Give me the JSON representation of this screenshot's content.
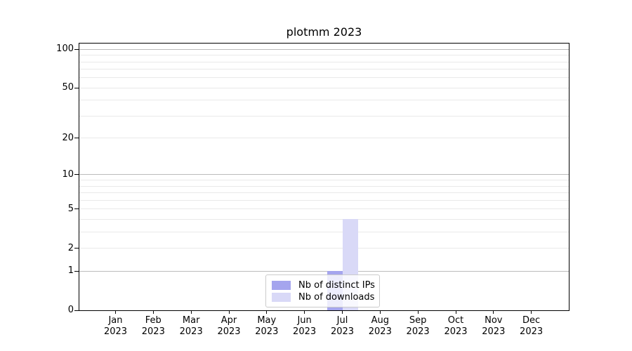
{
  "figure": {
    "title": "plotmm 2023"
  },
  "chart_data": {
    "type": "bar",
    "title": "plotmm 2023",
    "categories": [
      "Jan",
      "Feb",
      "Mar",
      "Apr",
      "May",
      "Jun",
      "Jul",
      "Aug",
      "Sep",
      "Oct",
      "Nov",
      "Dec"
    ],
    "category_year": "2023",
    "series": [
      {
        "name": "Nb of distinct IPs",
        "color": "#a5a5ee",
        "values": [
          0,
          0,
          0,
          0,
          0,
          0,
          1,
          0,
          0,
          0,
          0,
          0
        ]
      },
      {
        "name": "Nb of downloads",
        "color": "#d9d9f7",
        "values": [
          0,
          0,
          0,
          0,
          0,
          0,
          4,
          0,
          0,
          0,
          0,
          0
        ]
      }
    ],
    "xlabel": "",
    "ylabel": "",
    "y_axis": {
      "scale": "log10(1+v)",
      "labeled_ticks": [
        0,
        1,
        2,
        5,
        10,
        20,
        50,
        100
      ],
      "major_gridlines": [
        1,
        10,
        100
      ],
      "minor_gridlines": [
        2,
        3,
        4,
        5,
        6,
        7,
        8,
        9,
        20,
        30,
        40,
        50,
        60,
        70,
        80,
        90
      ],
      "ylim": [
        0,
        111
      ]
    },
    "grid": true,
    "legend": {
      "position": "lower center",
      "entries": [
        "Nb of distinct IPs",
        "Nb of downloads"
      ]
    }
  },
  "colors": {
    "background": "#ffffff",
    "axis": "#000000",
    "major_grid": "#bbbbbb",
    "minor_grid": "#e9e9e9",
    "legend_border": "#cbcbcb",
    "distinct_ips_bar": "#a5a5ee",
    "downloads_bar": "#d9d9f7"
  }
}
